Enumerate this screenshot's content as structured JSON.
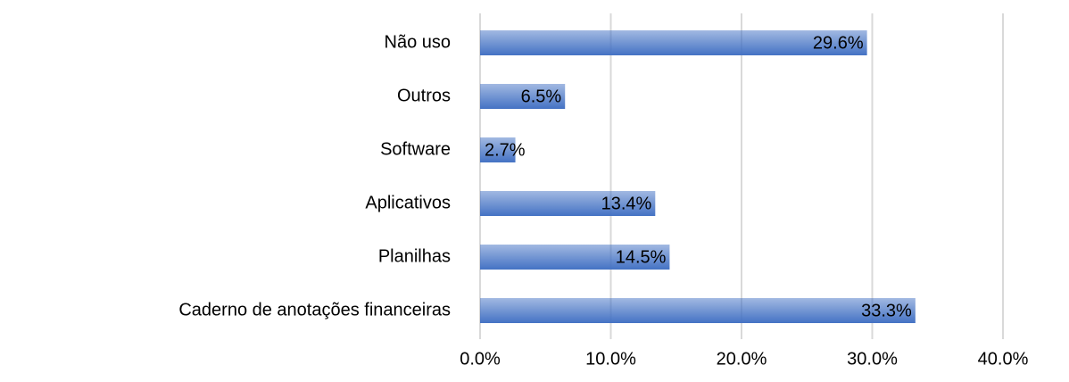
{
  "chart_data": {
    "type": "hbar",
    "categories": [
      "Não uso",
      "Outros",
      "Software",
      "Aplicativos",
      "Planilhas",
      "Caderno de anotações financeiras"
    ],
    "values": [
      29.6,
      6.5,
      2.7,
      13.4,
      14.5,
      33.3
    ],
    "value_labels": [
      "29.6%",
      "6.5%",
      "2.7%",
      "13.4%",
      "14.5%",
      "33.3%"
    ],
    "color": "#4472c4",
    "xlim": [
      0,
      40
    ],
    "xticks": [
      {
        "value": 0,
        "label": "0.0%"
      },
      {
        "value": 10,
        "label": "10.0%"
      },
      {
        "value": 20,
        "label": "20.0%"
      },
      {
        "value": 30,
        "label": "30.0%"
      },
      {
        "value": 40,
        "label": "40.0%"
      }
    ],
    "grid": true
  }
}
